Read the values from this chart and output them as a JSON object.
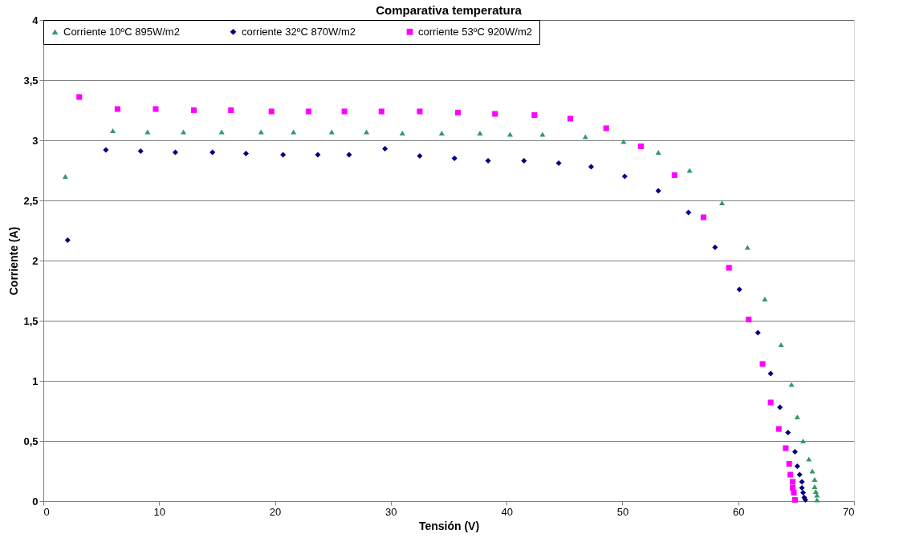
{
  "chart_data": {
    "type": "scatter",
    "title": "Comparativa temperatura",
    "xlabel": "Tensión (V)",
    "ylabel": "Corriente (A)",
    "xlim": [
      0,
      70
    ],
    "xticks": [
      0,
      10,
      20,
      30,
      40,
      50,
      60,
      70
    ],
    "ylim": [
      0,
      4
    ],
    "yticks": [
      0,
      {
        "value": 0.5,
        "label": "0,5"
      },
      1,
      {
        "value": 1.5,
        "label": "1,5"
      },
      2,
      {
        "value": 2.5,
        "label": "2,5"
      },
      3,
      {
        "value": 3.5,
        "label": "3,5"
      },
      4
    ],
    "grid": "y",
    "legend": "top",
    "series": [
      {
        "name": "Corriente 10ºC 895W/m2",
        "color": "#339966",
        "marker": "triangle",
        "x": [
          1.9,
          6.0,
          9.0,
          12.1,
          15.4,
          18.8,
          21.6,
          24.9,
          27.9,
          31.0,
          34.4,
          37.7,
          40.3,
          43.1,
          46.8,
          50.1,
          53.1,
          55.8,
          58.6,
          60.8,
          62.3,
          63.7,
          64.6,
          65.1,
          65.6,
          66.1,
          66.4,
          66.6,
          66.6,
          66.7,
          66.8,
          66.8
        ],
        "values": [
          2.7,
          3.08,
          3.07,
          3.07,
          3.07,
          3.07,
          3.07,
          3.07,
          3.07,
          3.06,
          3.06,
          3.06,
          3.05,
          3.05,
          3.03,
          2.99,
          2.9,
          2.75,
          2.48,
          2.11,
          1.68,
          1.3,
          0.97,
          0.7,
          0.5,
          0.35,
          0.25,
          0.18,
          0.12,
          0.08,
          0.05,
          0.01
        ]
      },
      {
        "name": "corriente 32ºC 870W/m2",
        "color": "#000080",
        "marker": "diamond",
        "x": [
          2.1,
          5.4,
          8.4,
          11.4,
          14.6,
          17.5,
          20.7,
          23.7,
          26.4,
          29.5,
          32.5,
          35.5,
          38.4,
          41.5,
          44.5,
          47.3,
          50.2,
          53.1,
          55.7,
          58.0,
          60.1,
          61.7,
          62.8,
          63.6,
          64.3,
          64.9,
          65.1,
          65.3,
          65.5,
          65.5,
          65.6,
          65.7,
          65.8
        ],
        "values": [
          2.17,
          2.92,
          2.91,
          2.9,
          2.9,
          2.89,
          2.88,
          2.88,
          2.88,
          2.93,
          2.87,
          2.85,
          2.83,
          2.83,
          2.81,
          2.78,
          2.7,
          2.58,
          2.4,
          2.11,
          1.76,
          1.4,
          1.06,
          0.78,
          0.57,
          0.41,
          0.29,
          0.22,
          0.16,
          0.11,
          0.07,
          0.03,
          0.01
        ]
      },
      {
        "name": "corriente 53ºC 920W/m2",
        "color": "#ff00ff",
        "marker": "square",
        "x": [
          3.1,
          6.4,
          9.7,
          13.0,
          16.2,
          19.7,
          22.9,
          26.0,
          29.2,
          32.5,
          35.8,
          39.0,
          42.4,
          45.5,
          48.6,
          51.6,
          54.5,
          57.0,
          59.2,
          60.9,
          62.1,
          62.8,
          63.5,
          64.1,
          64.4,
          64.5,
          64.7,
          64.7,
          64.8,
          64.9
        ],
        "values": [
          3.36,
          3.26,
          3.26,
          3.25,
          3.25,
          3.24,
          3.24,
          3.24,
          3.24,
          3.24,
          3.23,
          3.22,
          3.21,
          3.18,
          3.1,
          2.95,
          2.71,
          2.36,
          1.94,
          1.51,
          1.14,
          0.82,
          0.6,
          0.44,
          0.31,
          0.22,
          0.16,
          0.11,
          0.07,
          0.01
        ]
      }
    ]
  }
}
